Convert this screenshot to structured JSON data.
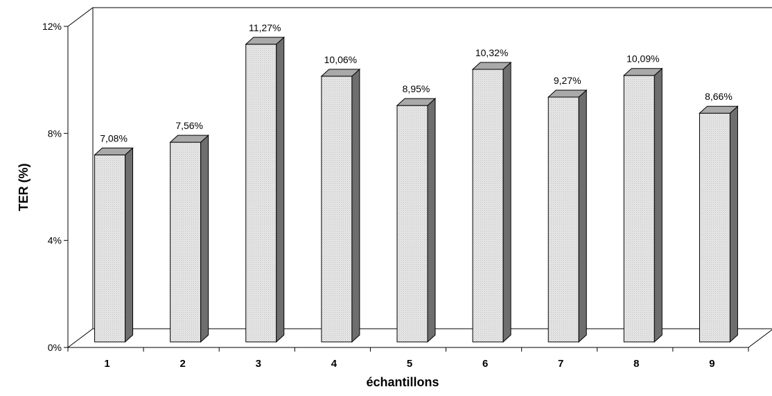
{
  "chart_data": {
    "type": "bar",
    "title": "",
    "xlabel": "échantillons",
    "ylabel": "TER (%)",
    "categories": [
      "1",
      "2",
      "3",
      "4",
      "5",
      "6",
      "7",
      "8",
      "9"
    ],
    "values": [
      7.08,
      7.56,
      11.27,
      10.06,
      8.95,
      10.32,
      9.27,
      10.09,
      8.66
    ],
    "value_labels": [
      "7,08%",
      "7,56%",
      "11,27%",
      "10,06%",
      "8,95%",
      "10,32%",
      "9,27%",
      "10,09%",
      "8,66%"
    ],
    "ylim": [
      0,
      12
    ],
    "y_ticks": [
      0,
      4,
      8,
      12
    ],
    "y_tick_labels": [
      "0%",
      "4%",
      "8%",
      "12%"
    ],
    "style": "3d-column",
    "grid": false,
    "legend": "none",
    "colors": {
      "bar_front": "#e6e6e6",
      "bar_top": "#a9a9a9",
      "bar_side": "#6e6e6e",
      "outline": "#000000",
      "background": "#ffffff"
    }
  }
}
